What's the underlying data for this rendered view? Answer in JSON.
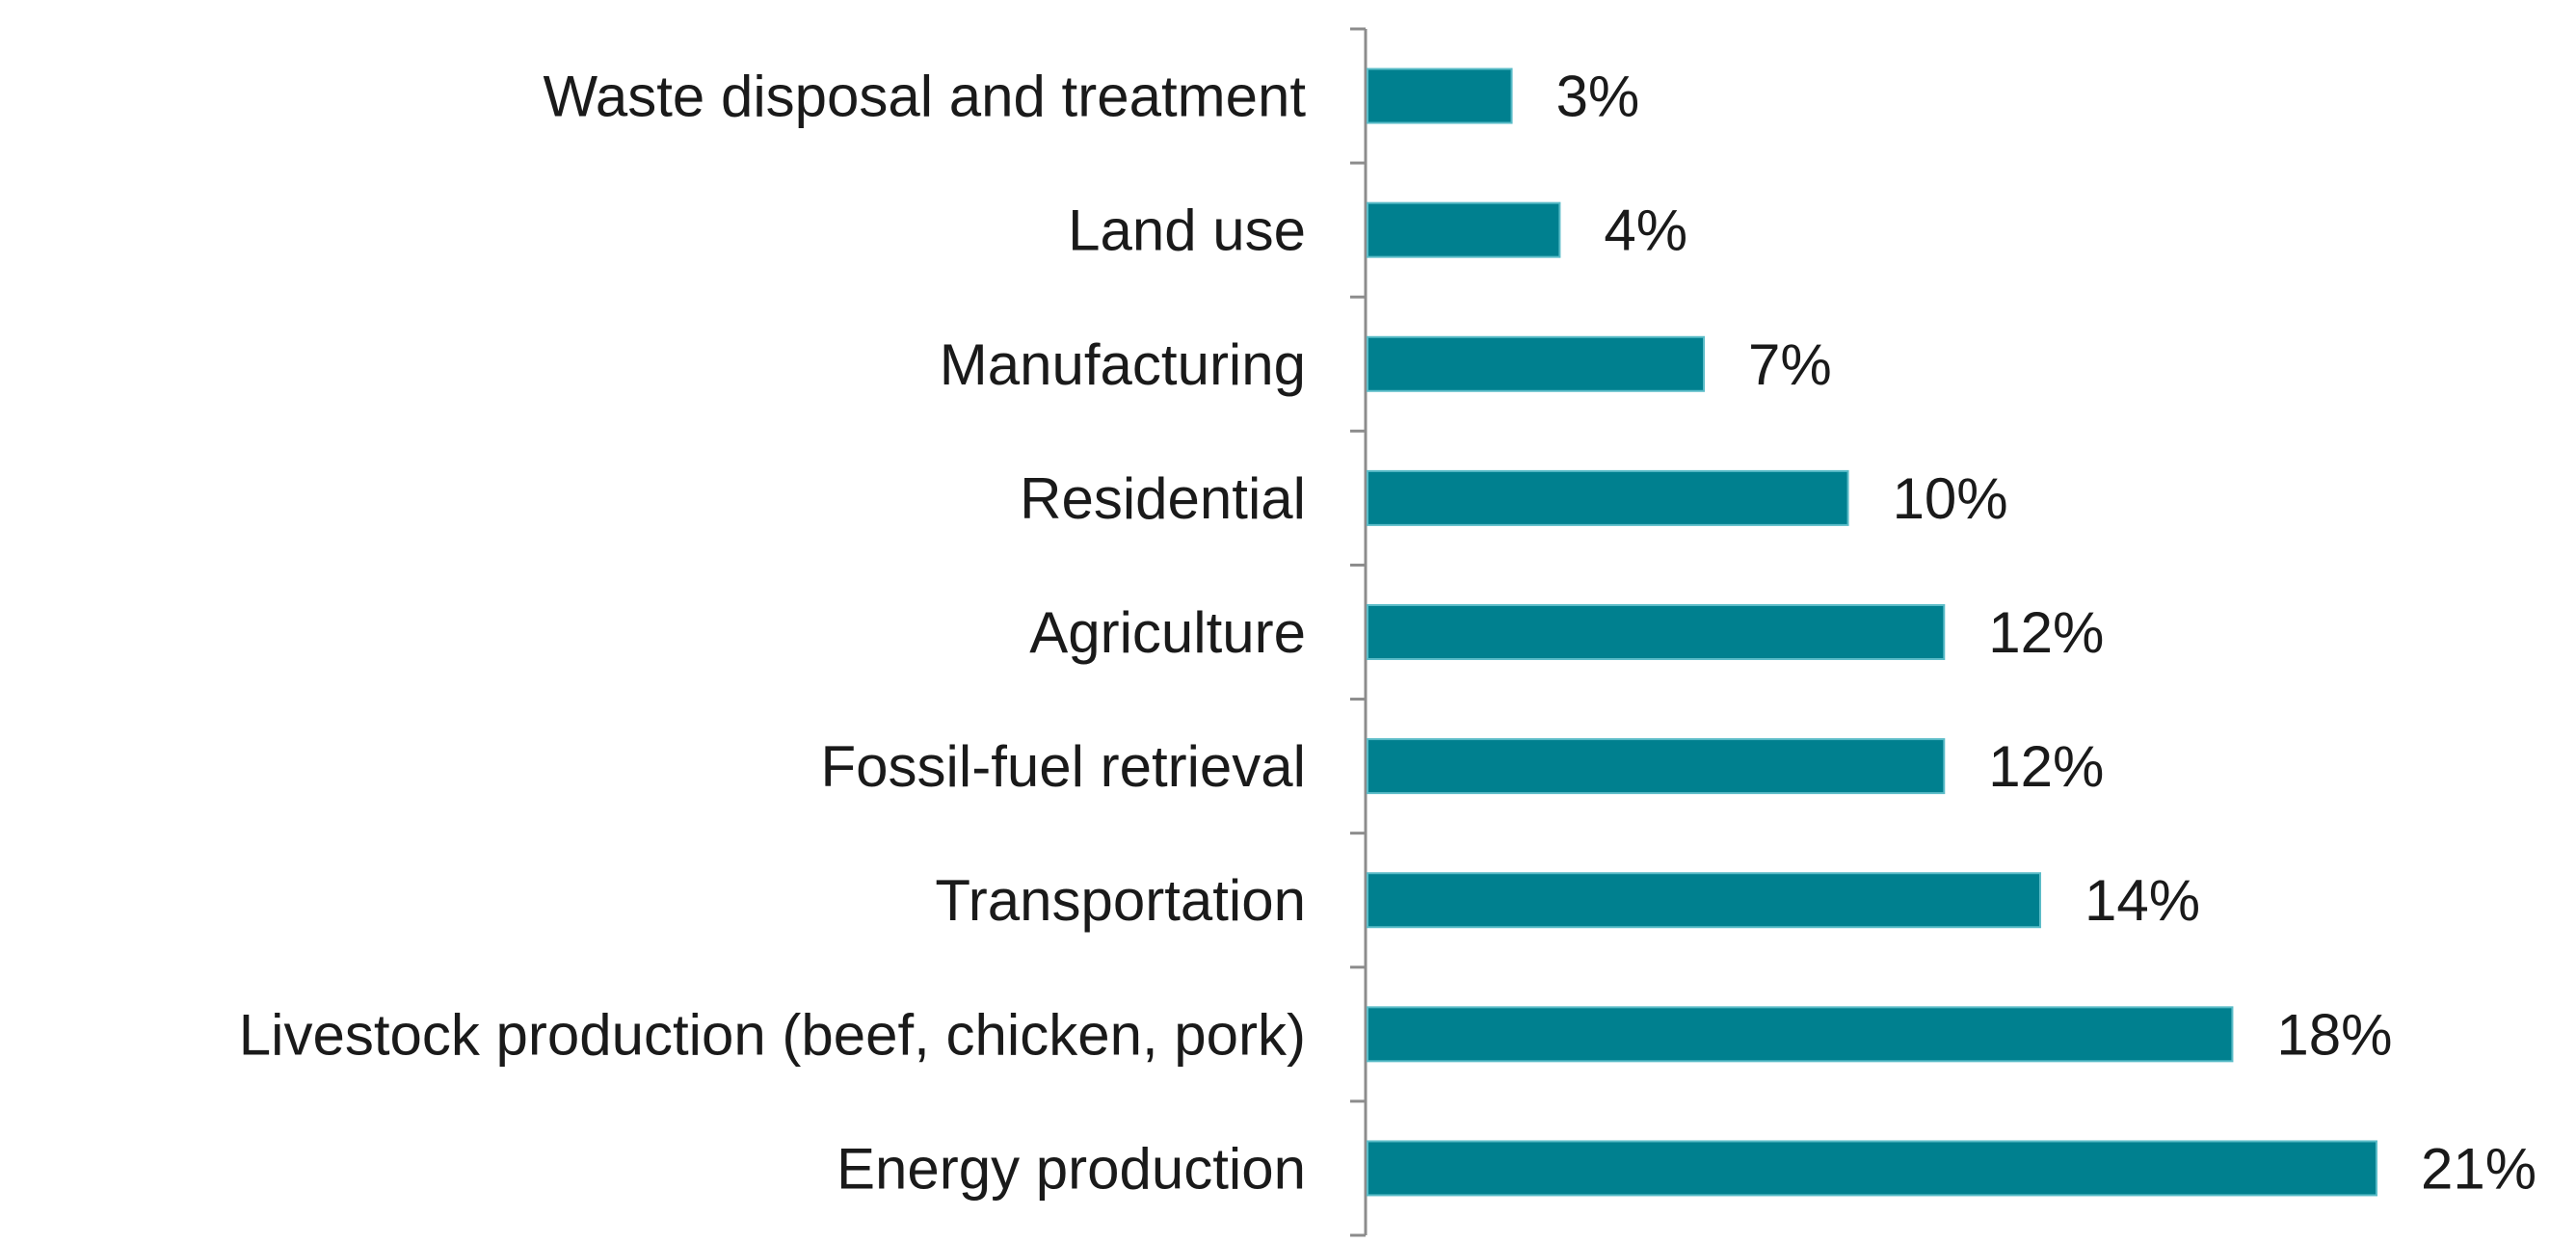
{
  "chart_data": {
    "type": "bar",
    "orientation": "horizontal",
    "title": "",
    "xlabel": "",
    "ylabel": "",
    "xlim": [
      0,
      21
    ],
    "grid": false,
    "legend": "none",
    "value_suffix": "%",
    "bar_color": "#00808F",
    "bar_edge_color": "#5BBCC8",
    "categories": [
      "Waste disposal and treatment",
      "Land use",
      "Manufacturing",
      "Residential",
      "Agriculture",
      "Fossil-fuel retrieval",
      "Transportation",
      "Livestock production (beef, chicken, pork)",
      "Energy production"
    ],
    "values": [
      3,
      4,
      7,
      10,
      12,
      12,
      14,
      18,
      21
    ],
    "value_labels": [
      "3%",
      "4%",
      "7%",
      "10%",
      "12%",
      "12%",
      "14%",
      "18%",
      "21%"
    ]
  }
}
